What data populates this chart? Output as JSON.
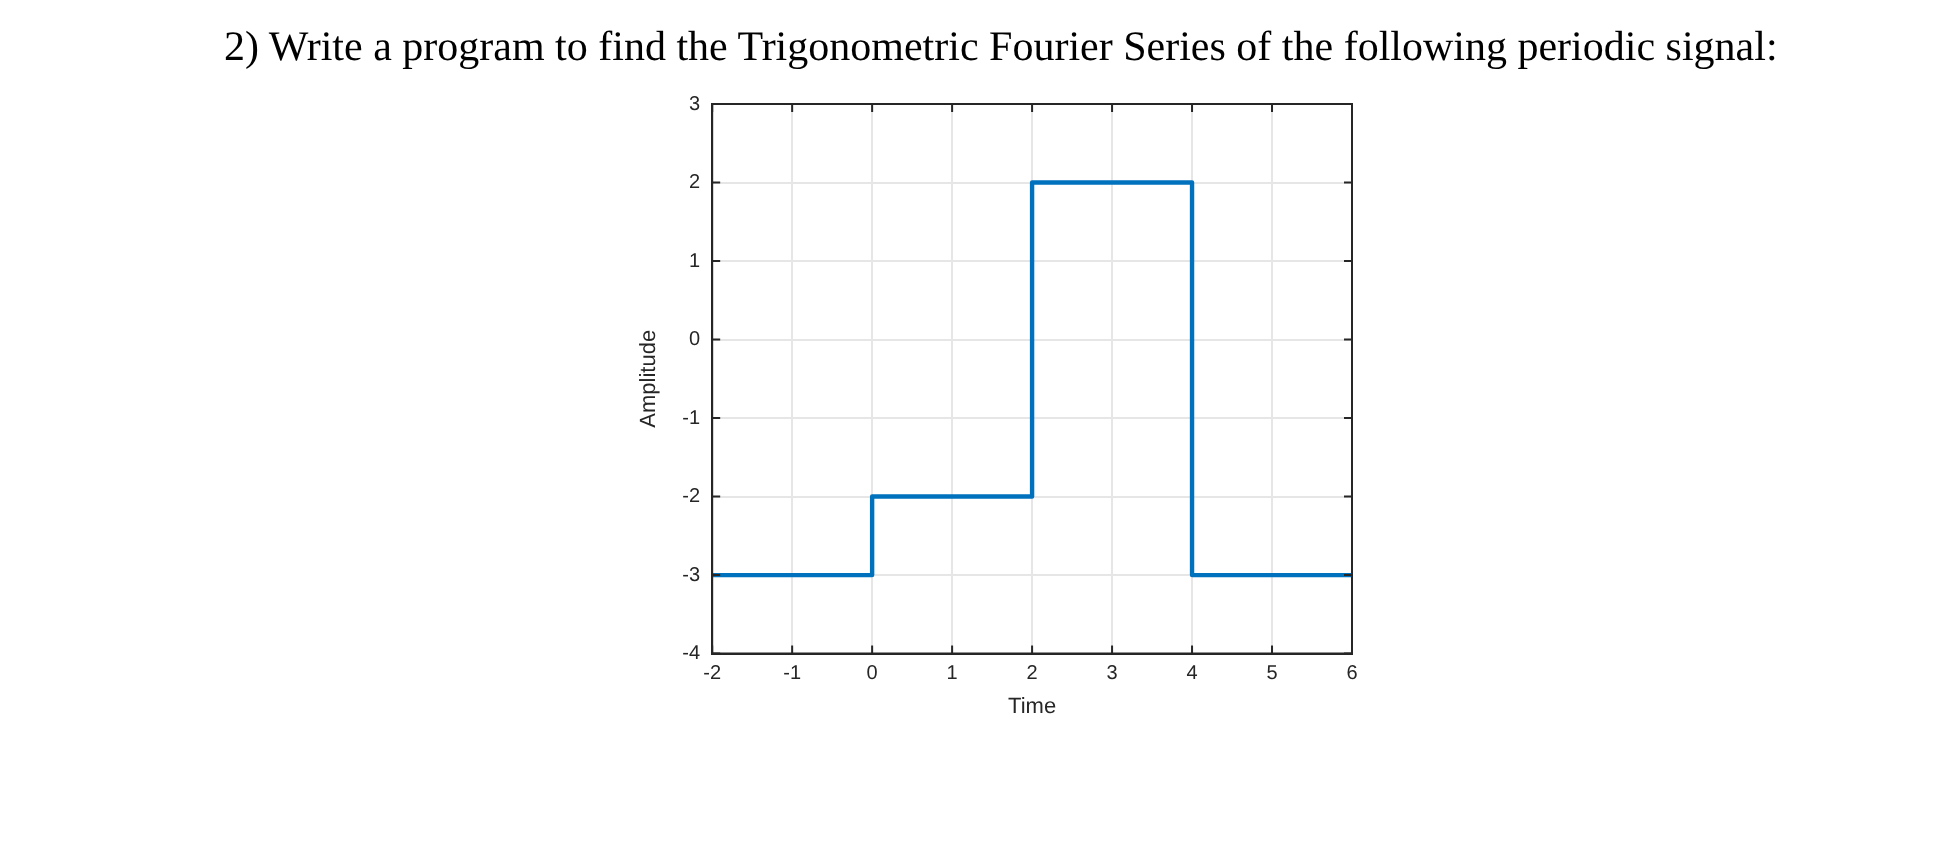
{
  "chart_data": {
    "type": "step",
    "title": "2) Write a program to find the Trigonometric Fourier Series of the following periodic signal:",
    "xlabel": "Time",
    "ylabel": "Amplitude",
    "x": [
      -2,
      0,
      2,
      4,
      6
    ],
    "series": [
      {
        "color": "#0072bd",
        "values": [
          -3,
          -2,
          2,
          -3,
          -3
        ]
      }
    ],
    "xlim": [
      -2,
      6
    ],
    "xticks": [
      -2,
      -1,
      0,
      1,
      2,
      3,
      4,
      5,
      6
    ],
    "ylim": [
      -4,
      3
    ],
    "yticks": [
      -4,
      -3,
      -2,
      -1,
      0,
      1,
      2,
      3
    ],
    "grid": true,
    "legend": false,
    "marker": "none",
    "line_style": "solid"
  }
}
